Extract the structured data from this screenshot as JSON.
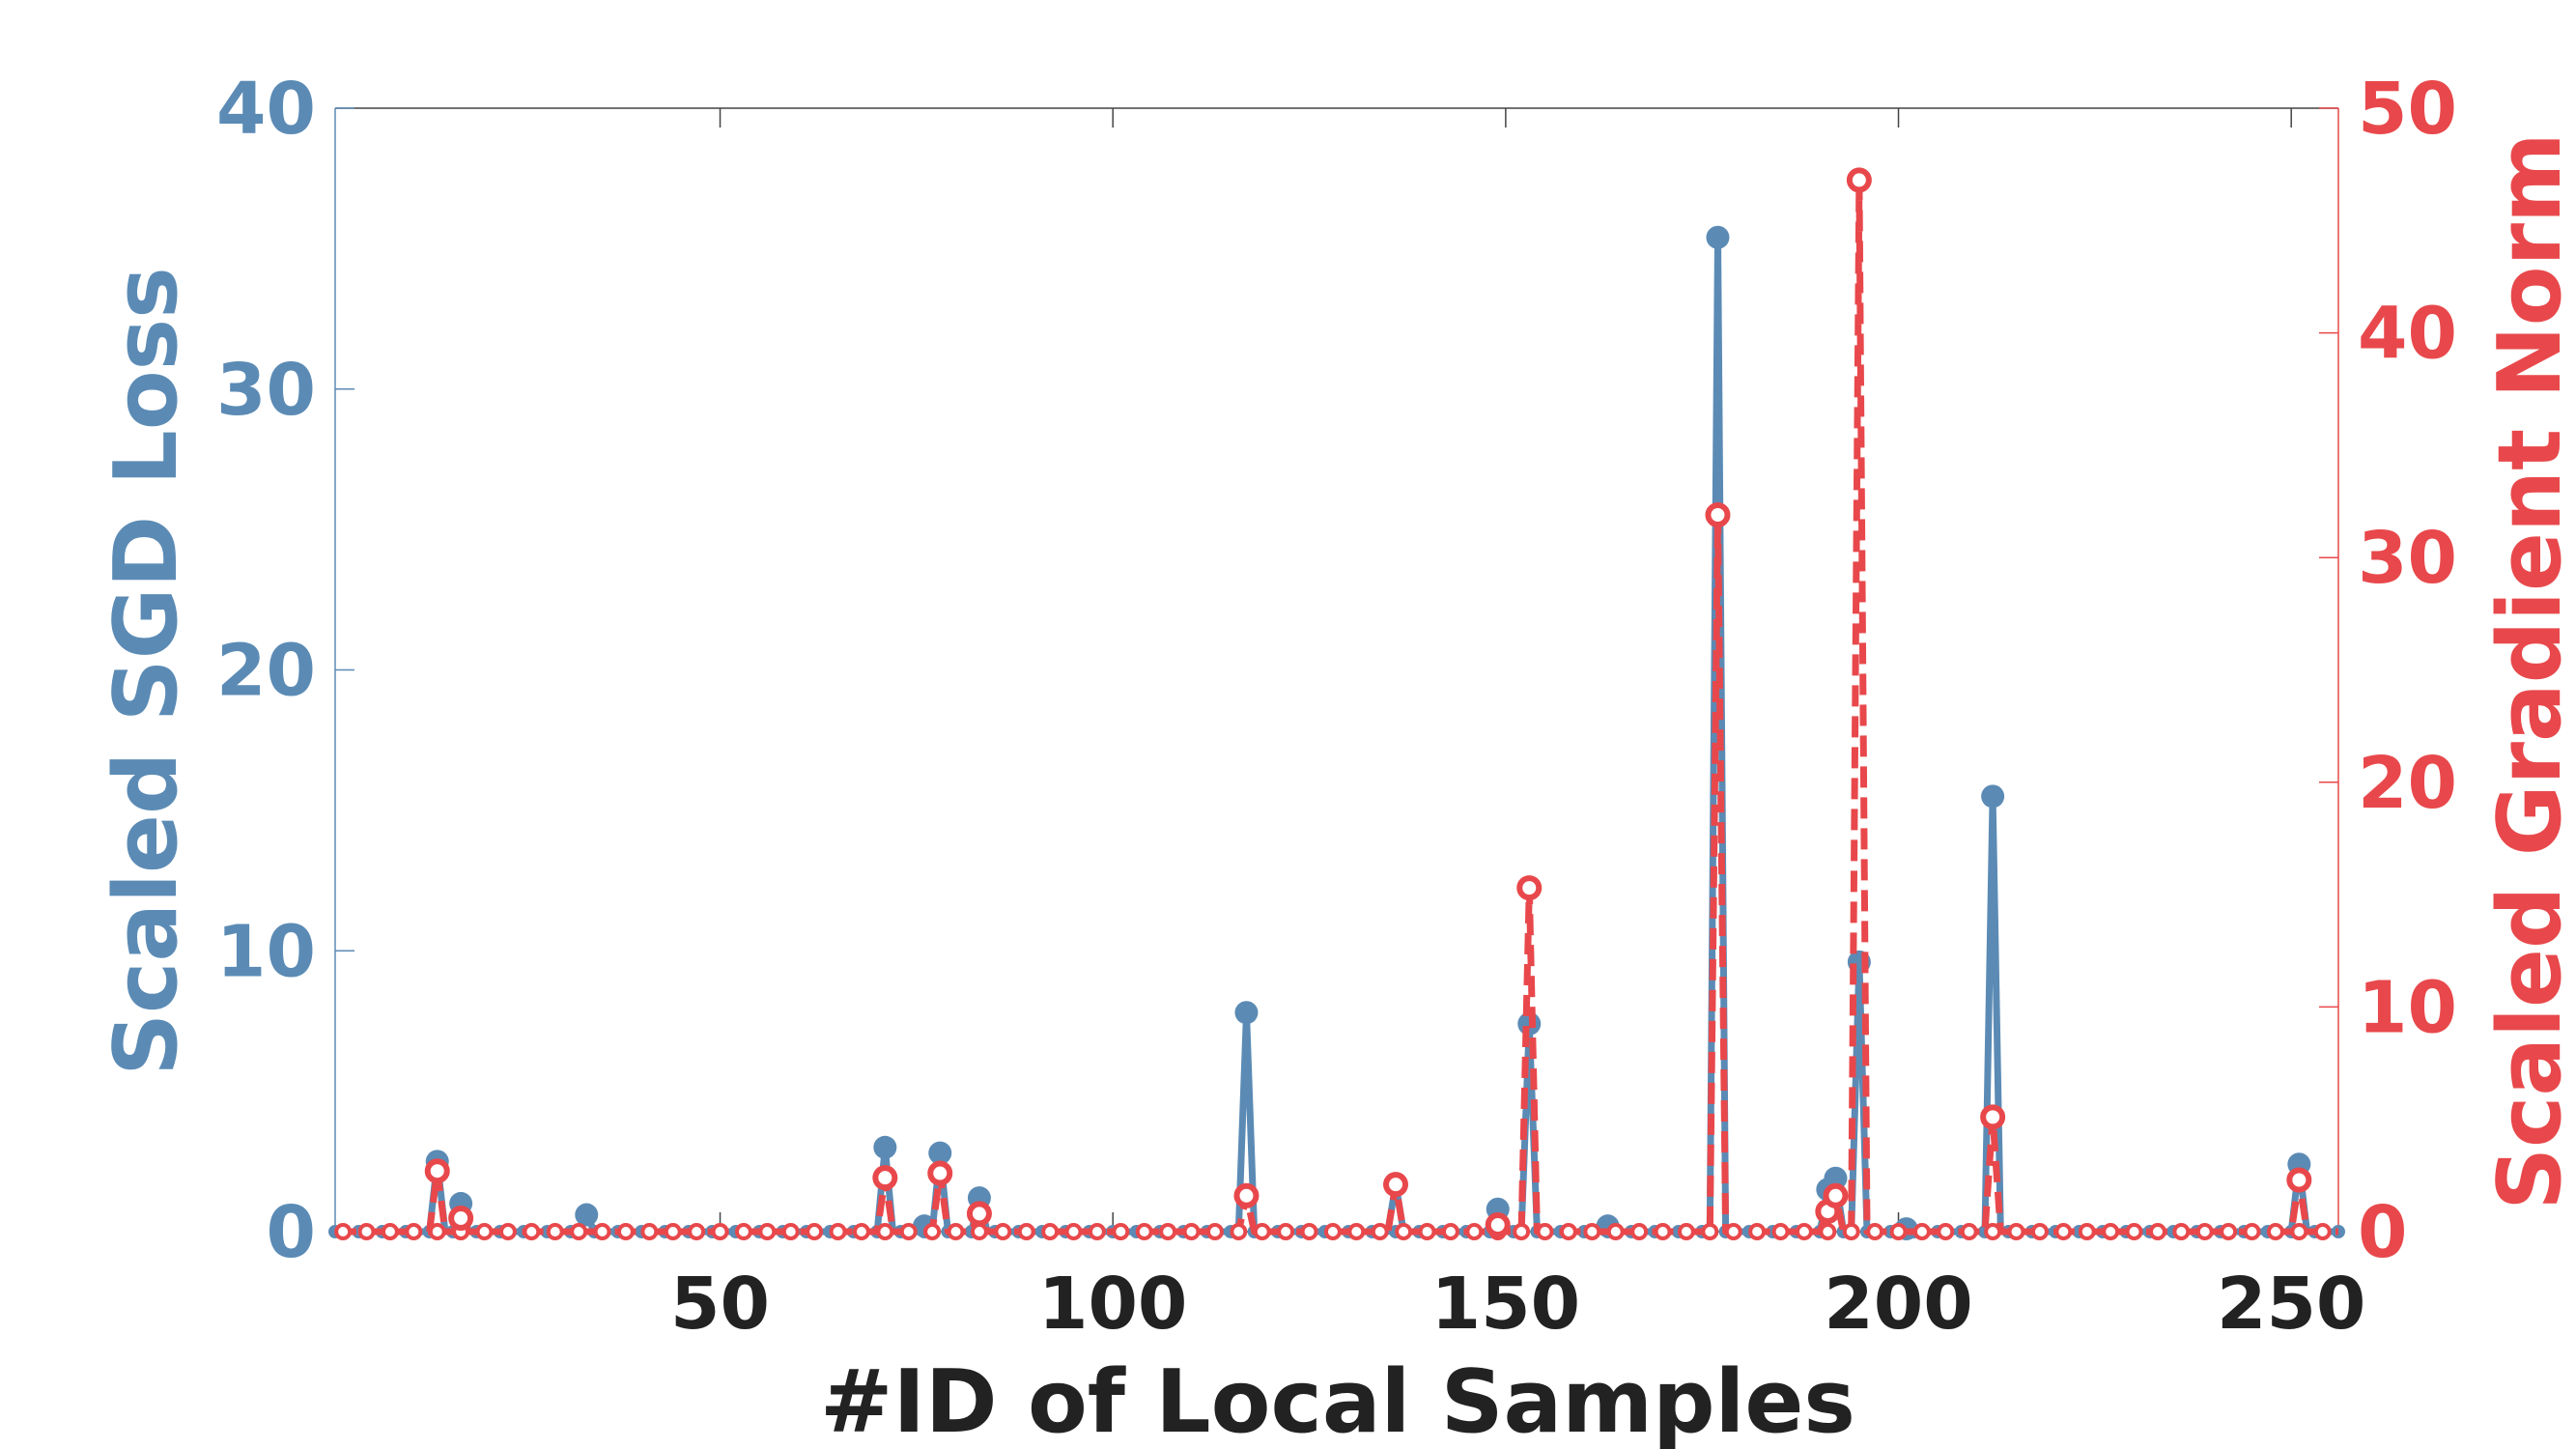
{
  "chart_data": {
    "type": "line",
    "xlabel": "#ID of Local Samples",
    "ylabel_left": "Scaled SGD Loss",
    "ylabel_right": "Scaled Gradient Norm",
    "xlim": [
      1,
      256
    ],
    "ylim_left": [
      0,
      40
    ],
    "ylim_right": [
      0,
      50
    ],
    "xticks": [
      50,
      100,
      150,
      200,
      250
    ],
    "yticks_left": [
      0,
      10,
      20,
      30,
      40
    ],
    "yticks_right": [
      0,
      10,
      20,
      30,
      40,
      50
    ],
    "grid": false,
    "colors": {
      "left": "#5b8bb5",
      "right": "#e8484b",
      "text": "#222222"
    },
    "series": [
      {
        "axis": "left",
        "style": "solid-filled-dots",
        "points": [
          [
            14,
            2.5
          ],
          [
            17,
            1.0
          ],
          [
            33,
            0.6
          ],
          [
            71,
            3.0
          ],
          [
            76,
            0.2
          ],
          [
            78,
            2.8
          ],
          [
            83,
            1.2
          ],
          [
            117,
            7.8
          ],
          [
            136,
            1.7
          ],
          [
            149,
            0.8
          ],
          [
            153,
            7.4
          ],
          [
            163,
            0.2
          ],
          [
            177,
            35.4
          ],
          [
            191,
            1.5
          ],
          [
            192,
            1.9
          ],
          [
            195,
            9.6
          ],
          [
            201,
            0.1
          ],
          [
            212,
            15.5
          ],
          [
            251,
            2.4
          ]
        ]
      },
      {
        "axis": "right",
        "style": "dashed-open-dots",
        "points": [
          [
            14,
            2.7
          ],
          [
            17,
            0.6
          ],
          [
            71,
            2.4
          ],
          [
            78,
            2.6
          ],
          [
            83,
            0.8
          ],
          [
            117,
            1.6
          ],
          [
            136,
            2.1
          ],
          [
            149,
            0.3
          ],
          [
            153,
            15.3
          ],
          [
            177,
            31.9
          ],
          [
            191,
            0.9
          ],
          [
            192,
            1.6
          ],
          [
            195,
            46.8
          ],
          [
            212,
            5.1
          ],
          [
            251,
            2.3
          ]
        ]
      }
    ]
  }
}
